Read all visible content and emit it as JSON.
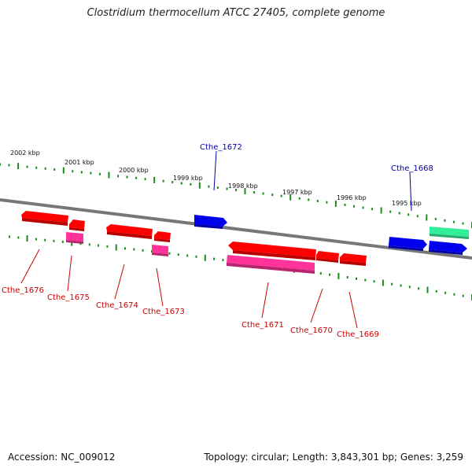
{
  "title": "Clostridium thermocellum ATCC 27405, complete genome",
  "accession": "Accession: NC_009012",
  "summary": "Topology: circular; Length: 3,843,301 bp; Genes: 3,259",
  "colors": {
    "cds": "#ff0000",
    "rna": "#ff3399",
    "label_red": "#cc0000",
    "label_blue": "#0000aa",
    "blue_gene": "#0000ee",
    "green_gene": "#33ee99",
    "backbone": "#777777",
    "tick": "#1a8c1a"
  },
  "kbp_labels": [
    "2002 kbp",
    "2001 kbp",
    "2000 kbp",
    "1999 kbp",
    "1998 kbp",
    "1997 kbp",
    "1996 kbp",
    "1995 kbp"
  ],
  "gene_labels": [
    "Cthe_1676",
    "Cthe_1675",
    "Cthe_1674",
    "Cthe_1673",
    "Cthe_1672",
    "Cthe_1671",
    "Cthe_1670",
    "Cthe_1669",
    "Cthe_1668"
  ]
}
